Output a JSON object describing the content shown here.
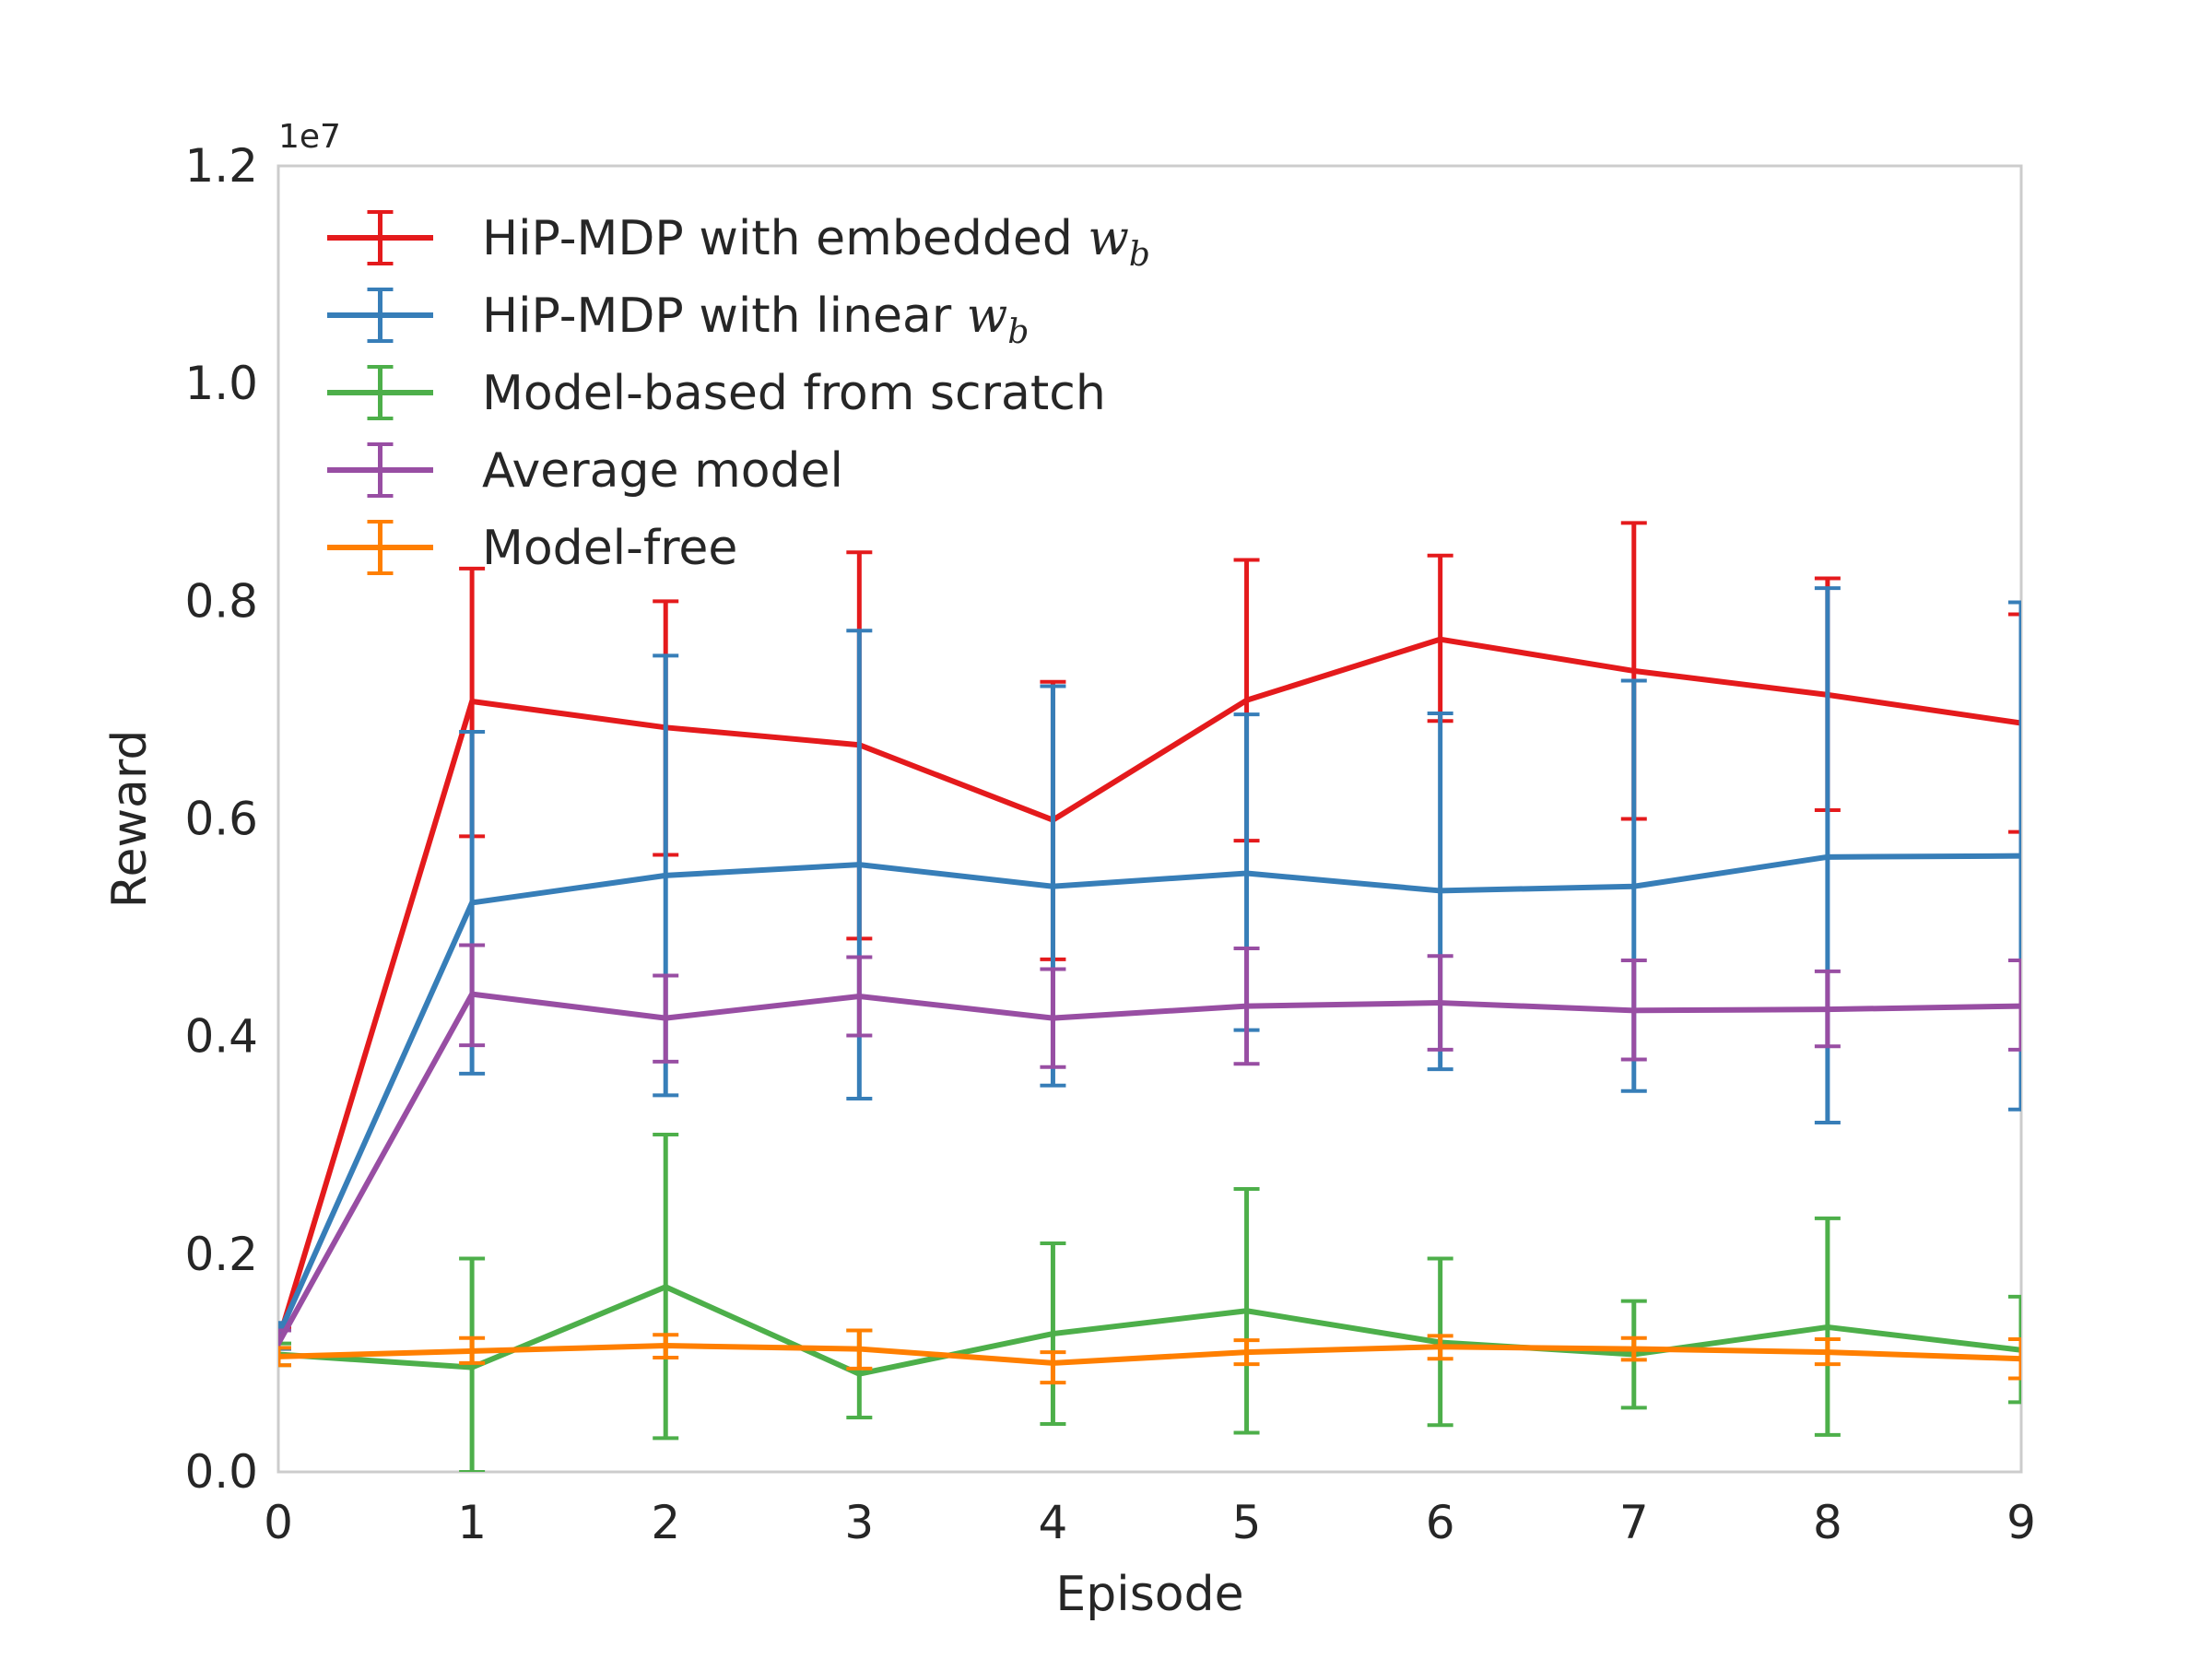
{
  "chart_data": {
    "type": "line",
    "xlabel": "Episode",
    "ylabel": "Reward",
    "y_exponent_label": "1e7",
    "y_scale": 10000000,
    "xlim": [
      0,
      9
    ],
    "ylim": [
      0,
      12000000
    ],
    "x_ticks": [
      "0",
      "1",
      "2",
      "3",
      "4",
      "5",
      "6",
      "7",
      "8",
      "9"
    ],
    "y_ticks": [
      "0.0",
      "0.2",
      "0.4",
      "0.6",
      "0.8",
      "1.0",
      "1.2"
    ],
    "grid": false,
    "legend_position": "top-left",
    "x": [
      0,
      1,
      2,
      3,
      4,
      5,
      6,
      7,
      8,
      9
    ],
    "series": [
      {
        "name": "HiP-MDP with embedded ",
        "name_math": "w",
        "name_sub": "b",
        "color": "#e41a1c",
        "values": [
          1200000,
          7080000,
          6840000,
          6680000,
          5990000,
          7090000,
          7650000,
          7360000,
          7140000,
          6880000
        ],
        "err_low": [
          1080000,
          5840000,
          5670000,
          4900000,
          4710000,
          5800000,
          6900000,
          6000000,
          6080000,
          5880000
        ],
        "err_high": [
          1320000,
          8300000,
          8000000,
          8450000,
          7260000,
          8380000,
          8420000,
          8720000,
          8210000,
          7880000
        ]
      },
      {
        "name": "HiP-MDP with linear ",
        "name_math": "w",
        "name_sub": "b",
        "color": "#377eb8",
        "values": [
          1250000,
          5230000,
          5480000,
          5580000,
          5380000,
          5500000,
          5340000,
          5380000,
          5650000,
          5660000
        ],
        "err_low": [
          1130000,
          3660000,
          3460000,
          3430000,
          3550000,
          4060000,
          3700000,
          3500000,
          3210000,
          3330000
        ],
        "err_high": [
          1370000,
          6800000,
          7500000,
          7730000,
          7220000,
          6960000,
          6970000,
          7270000,
          8120000,
          7990000
        ]
      },
      {
        "name": "Model-based from scratch",
        "color": "#4daf4a",
        "values": [
          1080000,
          960000,
          1700000,
          900000,
          1270000,
          1480000,
          1190000,
          1080000,
          1330000,
          1120000
        ],
        "err_low": [
          980000,
          0,
          310000,
          500000,
          440000,
          360000,
          430000,
          590000,
          340000,
          640000
        ],
        "err_high": [
          1180000,
          1960000,
          3100000,
          1300000,
          2100000,
          2600000,
          1960000,
          1570000,
          2330000,
          1610000
        ]
      },
      {
        "name": "Average model",
        "color": "#984ea3",
        "values": [
          1180000,
          4390000,
          4170000,
          4370000,
          4170000,
          4280000,
          4310000,
          4240000,
          4250000,
          4280000
        ],
        "err_low": [
          1060000,
          3920000,
          3770000,
          4010000,
          3720000,
          3750000,
          3880000,
          3790000,
          3910000,
          3880000
        ],
        "err_high": [
          1300000,
          4840000,
          4560000,
          4730000,
          4620000,
          4810000,
          4740000,
          4700000,
          4600000,
          4700000
        ]
      },
      {
        "name": "Model-free",
        "color": "#ff7f00",
        "values": [
          1060000,
          1110000,
          1160000,
          1130000,
          1000000,
          1100000,
          1150000,
          1130000,
          1100000,
          1040000
        ],
        "err_low": [
          980000,
          1000000,
          1050000,
          950000,
          820000,
          990000,
          1040000,
          1030000,
          990000,
          860000
        ],
        "err_high": [
          1140000,
          1230000,
          1260000,
          1300000,
          1100000,
          1210000,
          1250000,
          1230000,
          1220000,
          1220000
        ]
      }
    ]
  }
}
